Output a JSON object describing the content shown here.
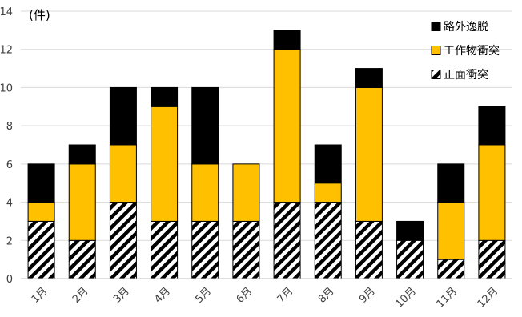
{
  "chart_data": {
    "type": "bar",
    "stacked": true,
    "unit_label": "(件)",
    "categories": [
      "1月",
      "2月",
      "3月",
      "4月",
      "5月",
      "6月",
      "7月",
      "8月",
      "9月",
      "10月",
      "11月",
      "12月"
    ],
    "series": [
      {
        "name": "正面衝突",
        "values": [
          3,
          2,
          4,
          3,
          3,
          3,
          4,
          4,
          3,
          2,
          1,
          2
        ],
        "color": "#ffffff",
        "pattern": "diagonal-stripes"
      },
      {
        "name": "工作物衝突",
        "values": [
          1,
          4,
          3,
          6,
          3,
          3,
          8,
          1,
          7,
          0,
          3,
          5
        ],
        "color": "#ffc000"
      },
      {
        "name": "路外逸脱",
        "values": [
          2,
          1,
          3,
          1,
          4,
          0,
          1,
          2,
          1,
          1,
          2,
          2
        ],
        "color": "#000000"
      }
    ],
    "ylim": [
      0,
      14
    ],
    "yticks": [
      0,
      2,
      4,
      6,
      8,
      10,
      12,
      14
    ],
    "grid": true,
    "legend_position": "top-right",
    "legend_order": [
      "路外逸脱",
      "工作物衝突",
      "正面衝突"
    ]
  }
}
